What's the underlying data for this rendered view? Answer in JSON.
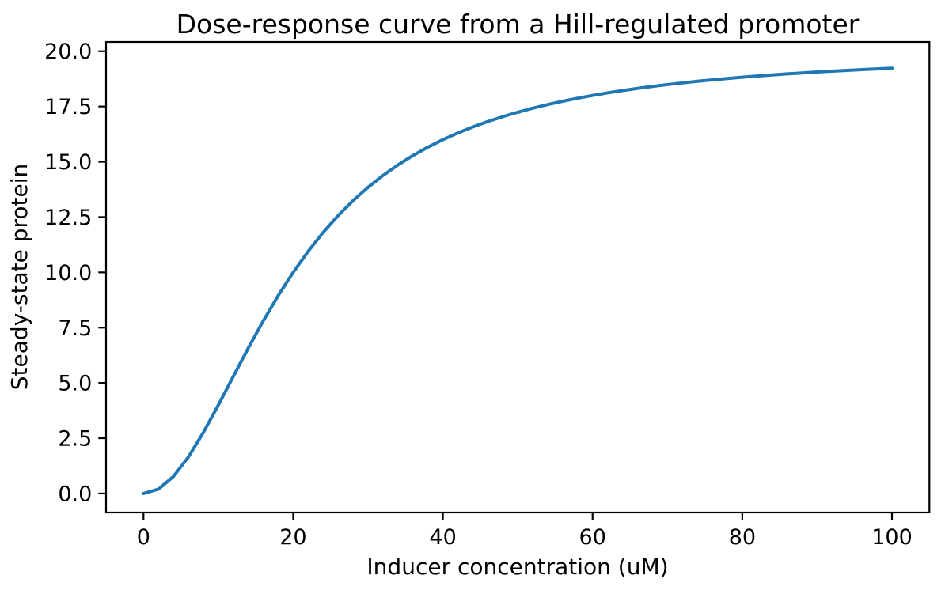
{
  "chart_data": {
    "type": "line",
    "title": "Dose-response curve from a Hill-regulated promoter",
    "xlabel": "Inducer concentration (uM)",
    "ylabel": "Steady-state protein",
    "xlim": [
      -5,
      105
    ],
    "ylim": [
      -0.86,
      20.42
    ],
    "grid": false,
    "legend": null,
    "xticks": {
      "values": [
        0,
        20,
        40,
        60,
        80,
        100
      ],
      "labels": [
        "0",
        "20",
        "40",
        "60",
        "80",
        "100"
      ]
    },
    "yticks": {
      "values": [
        0,
        2.5,
        5,
        7.5,
        10,
        12.5,
        15,
        17.5,
        20
      ],
      "labels": [
        "0.0",
        "2.5",
        "5.0",
        "7.5",
        "10.0",
        "12.5",
        "15.0",
        "17.5",
        "20.0"
      ]
    },
    "series": [
      {
        "name": "steady-state protein",
        "color": "#1f77b4",
        "line_width": 4,
        "x": [
          0,
          2,
          4,
          6,
          8,
          10,
          12,
          14,
          16,
          18,
          20,
          22,
          24,
          26,
          28,
          30,
          32,
          34,
          36,
          38,
          40,
          42,
          44,
          46,
          48,
          50,
          52,
          54,
          56,
          58,
          60,
          62,
          64,
          66,
          68,
          70,
          72,
          74,
          76,
          78,
          80,
          82,
          84,
          86,
          88,
          90,
          92,
          94,
          96,
          98,
          100
        ],
        "y": [
          0,
          0.198,
          0.769,
          1.651,
          2.759,
          4.0,
          5.294,
          6.577,
          7.805,
          8.95,
          10.0,
          10.95,
          11.803,
          12.565,
          13.243,
          13.846,
          14.382,
          14.859,
          15.283,
          15.662,
          16.0,
          16.303,
          16.575,
          16.82,
          17.041,
          17.241,
          17.423,
          17.587,
          17.738,
          17.875,
          18.0,
          18.115,
          18.221,
          18.318,
          18.408,
          18.491,
          18.567,
          18.639,
          18.705,
          18.766,
          18.824,
          18.877,
          18.927,
          18.974,
          19.018,
          19.059,
          19.097,
          19.134,
          19.168,
          19.2,
          19.231
        ]
      }
    ],
    "axis_color": "#000000",
    "background_color": "#ffffff"
  }
}
